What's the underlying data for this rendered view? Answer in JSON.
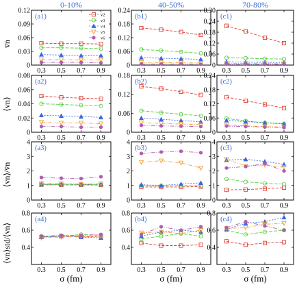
{
  "figure": {
    "col_headers": [
      "0-10%",
      "40-50%",
      "70-80%"
    ],
    "row_ylabels": [
      "v̄n",
      "⟨vn⟩",
      "⟨vn⟩/v̄n",
      "⟨vn⟩std/⟨vn⟩"
    ],
    "xlabel": "σ (fm)",
    "legend": [
      "v2",
      "v3",
      "v4",
      "v5",
      "v6"
    ]
  },
  "chart_data": [
    {
      "type": "line",
      "panel": "a1",
      "label": "(a1)",
      "x": [
        0.3,
        0.5,
        0.7,
        0.9
      ],
      "xlim": [
        0.2,
        1.0
      ],
      "ylim": [
        0,
        0.12
      ],
      "yticks": [
        "0",
        "0.03",
        "0.06",
        "0.09",
        "0.12"
      ],
      "grid": false,
      "legend_position": "top-right",
      "series": [
        {
          "name": "v2",
          "color": "#e03c31",
          "values": [
            0.048,
            0.047,
            0.047,
            0.046
          ]
        },
        {
          "name": "v3",
          "color": "#55d23b",
          "values": [
            0.038,
            0.038,
            0.037,
            0.036
          ]
        },
        {
          "name": "v4",
          "color": "#3a68e0",
          "values": [
            0.023,
            0.022,
            0.021,
            0.021
          ]
        },
        {
          "name": "v5",
          "color": "#f5a030",
          "values": [
            0.012,
            0.012,
            0.011,
            0.011
          ]
        },
        {
          "name": "v6",
          "color": "#b05cb0",
          "values": [
            0.006,
            0.006,
            0.006,
            0.005
          ]
        }
      ]
    },
    {
      "type": "line",
      "panel": "b1",
      "label": "(b1)",
      "x": [
        0.3,
        0.5,
        0.7,
        0.9
      ],
      "xlim": [
        0.2,
        1.0
      ],
      "ylim": [
        0,
        0.24
      ],
      "yticks": [
        "0",
        "0.06",
        "0.12",
        "0.18",
        "0.24"
      ],
      "grid": false,
      "series": [
        {
          "name": "v2",
          "color": "#e03c31",
          "values": [
            0.162,
            0.155,
            0.145,
            0.132
          ]
        },
        {
          "name": "v3",
          "color": "#55d23b",
          "values": [
            0.068,
            0.064,
            0.058,
            0.052
          ]
        },
        {
          "name": "v4",
          "color": "#3a68e0",
          "values": [
            0.033,
            0.03,
            0.028,
            0.025
          ]
        },
        {
          "name": "v5",
          "color": "#f5a030",
          "values": [
            0.012,
            0.011,
            0.01,
            0.009
          ]
        },
        {
          "name": "v6",
          "color": "#b05cb0",
          "values": [
            0.005,
            0.005,
            0.005,
            0.004
          ]
        }
      ]
    },
    {
      "type": "line",
      "panel": "c1",
      "label": "(c1)",
      "x": [
        0.3,
        0.5,
        0.7,
        0.9
      ],
      "xlim": [
        0.2,
        1.0
      ],
      "ylim": [
        0,
        0.3
      ],
      "yticks": [
        "0",
        "0.06",
        "0.12",
        "0.18",
        "0.24",
        "0.30"
      ],
      "grid": false,
      "series": [
        {
          "name": "v2",
          "color": "#e03c31",
          "values": [
            0.215,
            0.185,
            0.15,
            0.12
          ]
        },
        {
          "name": "v3",
          "color": "#55d23b",
          "values": [
            0.04,
            0.038,
            0.035,
            0.033
          ]
        },
        {
          "name": "v4",
          "color": "#3a68e0",
          "values": [
            0.018,
            0.016,
            0.015,
            0.014
          ]
        },
        {
          "name": "v5",
          "color": "#f5a030",
          "values": [
            0.01,
            0.009,
            0.009,
            0.008
          ]
        },
        {
          "name": "v6",
          "color": "#b05cb0",
          "values": [
            0.005,
            0.005,
            0.004,
            0.004
          ]
        }
      ]
    },
    {
      "type": "line",
      "panel": "a2",
      "label": "(a2)",
      "x": [
        0.3,
        0.5,
        0.7,
        0.9
      ],
      "xlim": [
        0.2,
        1.0
      ],
      "ylim": [
        0,
        0.08
      ],
      "yticks": [
        "0",
        "0.02",
        "0.04",
        "0.06",
        "0.08"
      ],
      "grid": false,
      "series": [
        {
          "name": "v2",
          "color": "#e03c31",
          "values": [
            0.051,
            0.049,
            0.048,
            0.047
          ]
        },
        {
          "name": "v3",
          "color": "#55d23b",
          "values": [
            0.04,
            0.039,
            0.038,
            0.037
          ]
        },
        {
          "name": "v4",
          "color": "#3a68e0",
          "values": [
            0.024,
            0.023,
            0.022,
            0.021
          ]
        },
        {
          "name": "v5",
          "color": "#f5a030",
          "values": [
            0.014,
            0.013,
            0.013,
            0.012
          ]
        },
        {
          "name": "v6",
          "color": "#b05cb0",
          "values": [
            0.008,
            0.008,
            0.007,
            0.007
          ]
        }
      ]
    },
    {
      "type": "line",
      "panel": "b2",
      "label": "(b2)",
      "x": [
        0.3,
        0.5,
        0.7,
        0.9
      ],
      "xlim": [
        0.2,
        1.0
      ],
      "ylim": [
        0,
        0.18
      ],
      "yticks": [
        "0",
        "0.06",
        "0.12",
        "0.18"
      ],
      "grid": false,
      "series": [
        {
          "name": "v2",
          "color": "#e03c31",
          "values": [
            0.145,
            0.138,
            0.128,
            0.118
          ]
        },
        {
          "name": "v3",
          "color": "#55d23b",
          "values": [
            0.068,
            0.062,
            0.057,
            0.052
          ]
        },
        {
          "name": "v4",
          "color": "#3a68e0",
          "values": [
            0.045,
            0.041,
            0.037,
            0.033
          ]
        },
        {
          "name": "v5",
          "color": "#f5a030",
          "values": [
            0.03,
            0.028,
            0.026,
            0.024
          ]
        },
        {
          "name": "v6",
          "color": "#b05cb0",
          "values": [
            0.022,
            0.02,
            0.019,
            0.018
          ]
        }
      ]
    },
    {
      "type": "line",
      "panel": "c2",
      "label": "(c2)",
      "x": [
        0.3,
        0.5,
        0.7,
        0.9
      ],
      "xlim": [
        0.2,
        1.0
      ],
      "ylim": [
        0,
        0.24
      ],
      "yticks": [
        "0",
        "0.06",
        "0.12",
        "0.18",
        "0.24"
      ],
      "grid": false,
      "series": [
        {
          "name": "v2",
          "color": "#e03c31",
          "values": [
            0.148,
            0.133,
            0.117,
            0.102
          ]
        },
        {
          "name": "v3",
          "color": "#55d23b",
          "values": [
            0.058,
            0.048,
            0.04,
            0.036
          ]
        },
        {
          "name": "v4",
          "color": "#3a68e0",
          "values": [
            0.05,
            0.045,
            0.04,
            0.035
          ]
        },
        {
          "name": "v5",
          "color": "#f5a030",
          "values": [
            0.03,
            0.027,
            0.024,
            0.022
          ]
        },
        {
          "name": "v6",
          "color": "#b05cb0",
          "values": [
            0.026,
            0.024,
            0.022,
            0.02
          ]
        }
      ]
    },
    {
      "type": "line",
      "panel": "a3",
      "label": "(a3)",
      "x": [
        0.3,
        0.5,
        0.7,
        0.9
      ],
      "xlim": [
        0.2,
        1.0
      ],
      "ylim": [
        0,
        4
      ],
      "yticks": [
        "0",
        "1",
        "2",
        "3",
        "4"
      ],
      "grid": false,
      "series": [
        {
          "name": "v2",
          "color": "#e03c31",
          "values": [
            1.05,
            1.04,
            1.04,
            1.03
          ]
        },
        {
          "name": "v3",
          "color": "#55d23b",
          "values": [
            1.05,
            1.06,
            1.05,
            1.06
          ]
        },
        {
          "name": "v4",
          "color": "#3a68e0",
          "values": [
            1.08,
            1.1,
            1.08,
            1.09
          ]
        },
        {
          "name": "v5",
          "color": "#f5a030",
          "values": [
            1.15,
            1.12,
            1.1,
            1.12
          ]
        },
        {
          "name": "v6",
          "color": "#b05cb0",
          "values": [
            1.55,
            1.5,
            1.48,
            1.6
          ]
        }
      ]
    },
    {
      "type": "line",
      "panel": "b3",
      "label": "(b3)",
      "x": [
        0.3,
        0.5,
        0.7,
        0.9
      ],
      "xlim": [
        0.2,
        1.0
      ],
      "ylim": [
        0,
        4
      ],
      "yticks": [
        "0",
        "1",
        "2",
        "3",
        "4"
      ],
      "grid": false,
      "series": [
        {
          "name": "v2",
          "color": "#e03c31",
          "values": [
            0.9,
            0.9,
            0.9,
            0.92
          ]
        },
        {
          "name": "v3",
          "color": "#55d23b",
          "values": [
            1.0,
            0.98,
            1.0,
            0.98
          ]
        },
        {
          "name": "v4",
          "color": "#3a68e0",
          "values": [
            1.05,
            1.0,
            1.1,
            1.18
          ]
        },
        {
          "name": "v5",
          "color": "#f5a030",
          "values": [
            2.6,
            2.7,
            2.55,
            2.2
          ]
        },
        {
          "name": "v6",
          "color": "#b05cb0",
          "values": [
            3.2,
            3.3,
            3.35,
            3.25
          ]
        }
      ]
    },
    {
      "type": "line",
      "panel": "c3",
      "label": "(c3)",
      "x": [
        0.3,
        0.5,
        0.7,
        0.9
      ],
      "xlim": [
        0.2,
        1.0
      ],
      "ylim": [
        0,
        4
      ],
      "yticks": [
        "0",
        "1",
        "2",
        "3",
        "4"
      ],
      "grid": false,
      "series": [
        {
          "name": "v2",
          "color": "#e03c31",
          "values": [
            0.7,
            0.72,
            0.78,
            0.85
          ]
        },
        {
          "name": "v3",
          "color": "#55d23b",
          "values": [
            1.45,
            1.25,
            1.15,
            1.1
          ]
        },
        {
          "name": "v4",
          "color": "#3a68e0",
          "values": [
            2.75,
            2.8,
            2.65,
            2.45
          ]
        },
        {
          "name": "v5",
          "color": "#f5a030",
          "values": [
            2.8,
            2.35,
            2.4,
            2.25
          ]
        },
        {
          "name": "v6",
          "color": "#b05cb0",
          "values": [
            2.2,
            2.3,
            2.5,
            2.0
          ]
        }
      ]
    },
    {
      "type": "line",
      "panel": "a4",
      "label": "(a4)",
      "x": [
        0.3,
        0.5,
        0.7,
        0.9
      ],
      "xlim": [
        0.2,
        1.0
      ],
      "ylim": [
        0.2,
        0.8
      ],
      "yticks": [
        "0.4",
        "0.6",
        "0.8"
      ],
      "grid": false,
      "series": [
        {
          "name": "v2",
          "color": "#e03c31",
          "values": [
            0.52,
            0.53,
            0.52,
            0.53
          ]
        },
        {
          "name": "v3",
          "color": "#55d23b",
          "values": [
            0.53,
            0.53,
            0.55,
            0.54
          ]
        },
        {
          "name": "v4",
          "color": "#3a68e0",
          "values": [
            0.52,
            0.53,
            0.52,
            0.51
          ]
        },
        {
          "name": "v5",
          "color": "#f5a030",
          "values": [
            0.51,
            0.52,
            0.53,
            0.53
          ]
        },
        {
          "name": "v6",
          "color": "#b05cb0",
          "values": [
            0.53,
            0.54,
            0.54,
            0.55
          ]
        }
      ]
    },
    {
      "type": "line",
      "panel": "b4",
      "label": "(b4)",
      "x": [
        0.3,
        0.5,
        0.7,
        0.9
      ],
      "xlim": [
        0.2,
        1.0
      ],
      "ylim": [
        0.2,
        0.8
      ],
      "yticks": [
        "0.4",
        "0.6",
        "0.8"
      ],
      "grid": false,
      "series": [
        {
          "name": "v2",
          "color": "#e03c31",
          "values": [
            0.45,
            0.42,
            0.42,
            0.43
          ]
        },
        {
          "name": "v3",
          "color": "#55d23b",
          "values": [
            0.5,
            0.53,
            0.56,
            0.53
          ]
        },
        {
          "name": "v4",
          "color": "#3a68e0",
          "values": [
            0.53,
            0.58,
            0.6,
            0.58
          ]
        },
        {
          "name": "v5",
          "color": "#f5a030",
          "values": [
            0.57,
            0.58,
            0.56,
            0.6
          ]
        },
        {
          "name": "v6",
          "color": "#b05cb0",
          "values": [
            0.55,
            0.64,
            0.6,
            0.64
          ]
        }
      ]
    },
    {
      "type": "line",
      "panel": "c4",
      "label": "(c4)",
      "x": [
        0.3,
        0.5,
        0.7,
        0.9
      ],
      "xlim": [
        0.2,
        1.0
      ],
      "ylim": [
        0.2,
        0.8
      ],
      "yticks": [
        "0.4",
        "0.6",
        "0.8"
      ],
      "grid": false,
      "series": [
        {
          "name": "v2",
          "color": "#e03c31",
          "values": [
            0.47,
            0.43,
            0.45,
            0.46
          ]
        },
        {
          "name": "v3",
          "color": "#55d23b",
          "values": [
            0.6,
            0.55,
            0.58,
            0.6
          ]
        },
        {
          "name": "v4",
          "color": "#3a68e0",
          "values": [
            0.61,
            0.68,
            0.7,
            0.75
          ]
        },
        {
          "name": "v5",
          "color": "#f5a030",
          "values": [
            0.62,
            0.63,
            0.67,
            0.68
          ]
        },
        {
          "name": "v6",
          "color": "#b05cb0",
          "values": [
            0.63,
            0.7,
            0.65,
            0.6
          ]
        }
      ]
    }
  ]
}
